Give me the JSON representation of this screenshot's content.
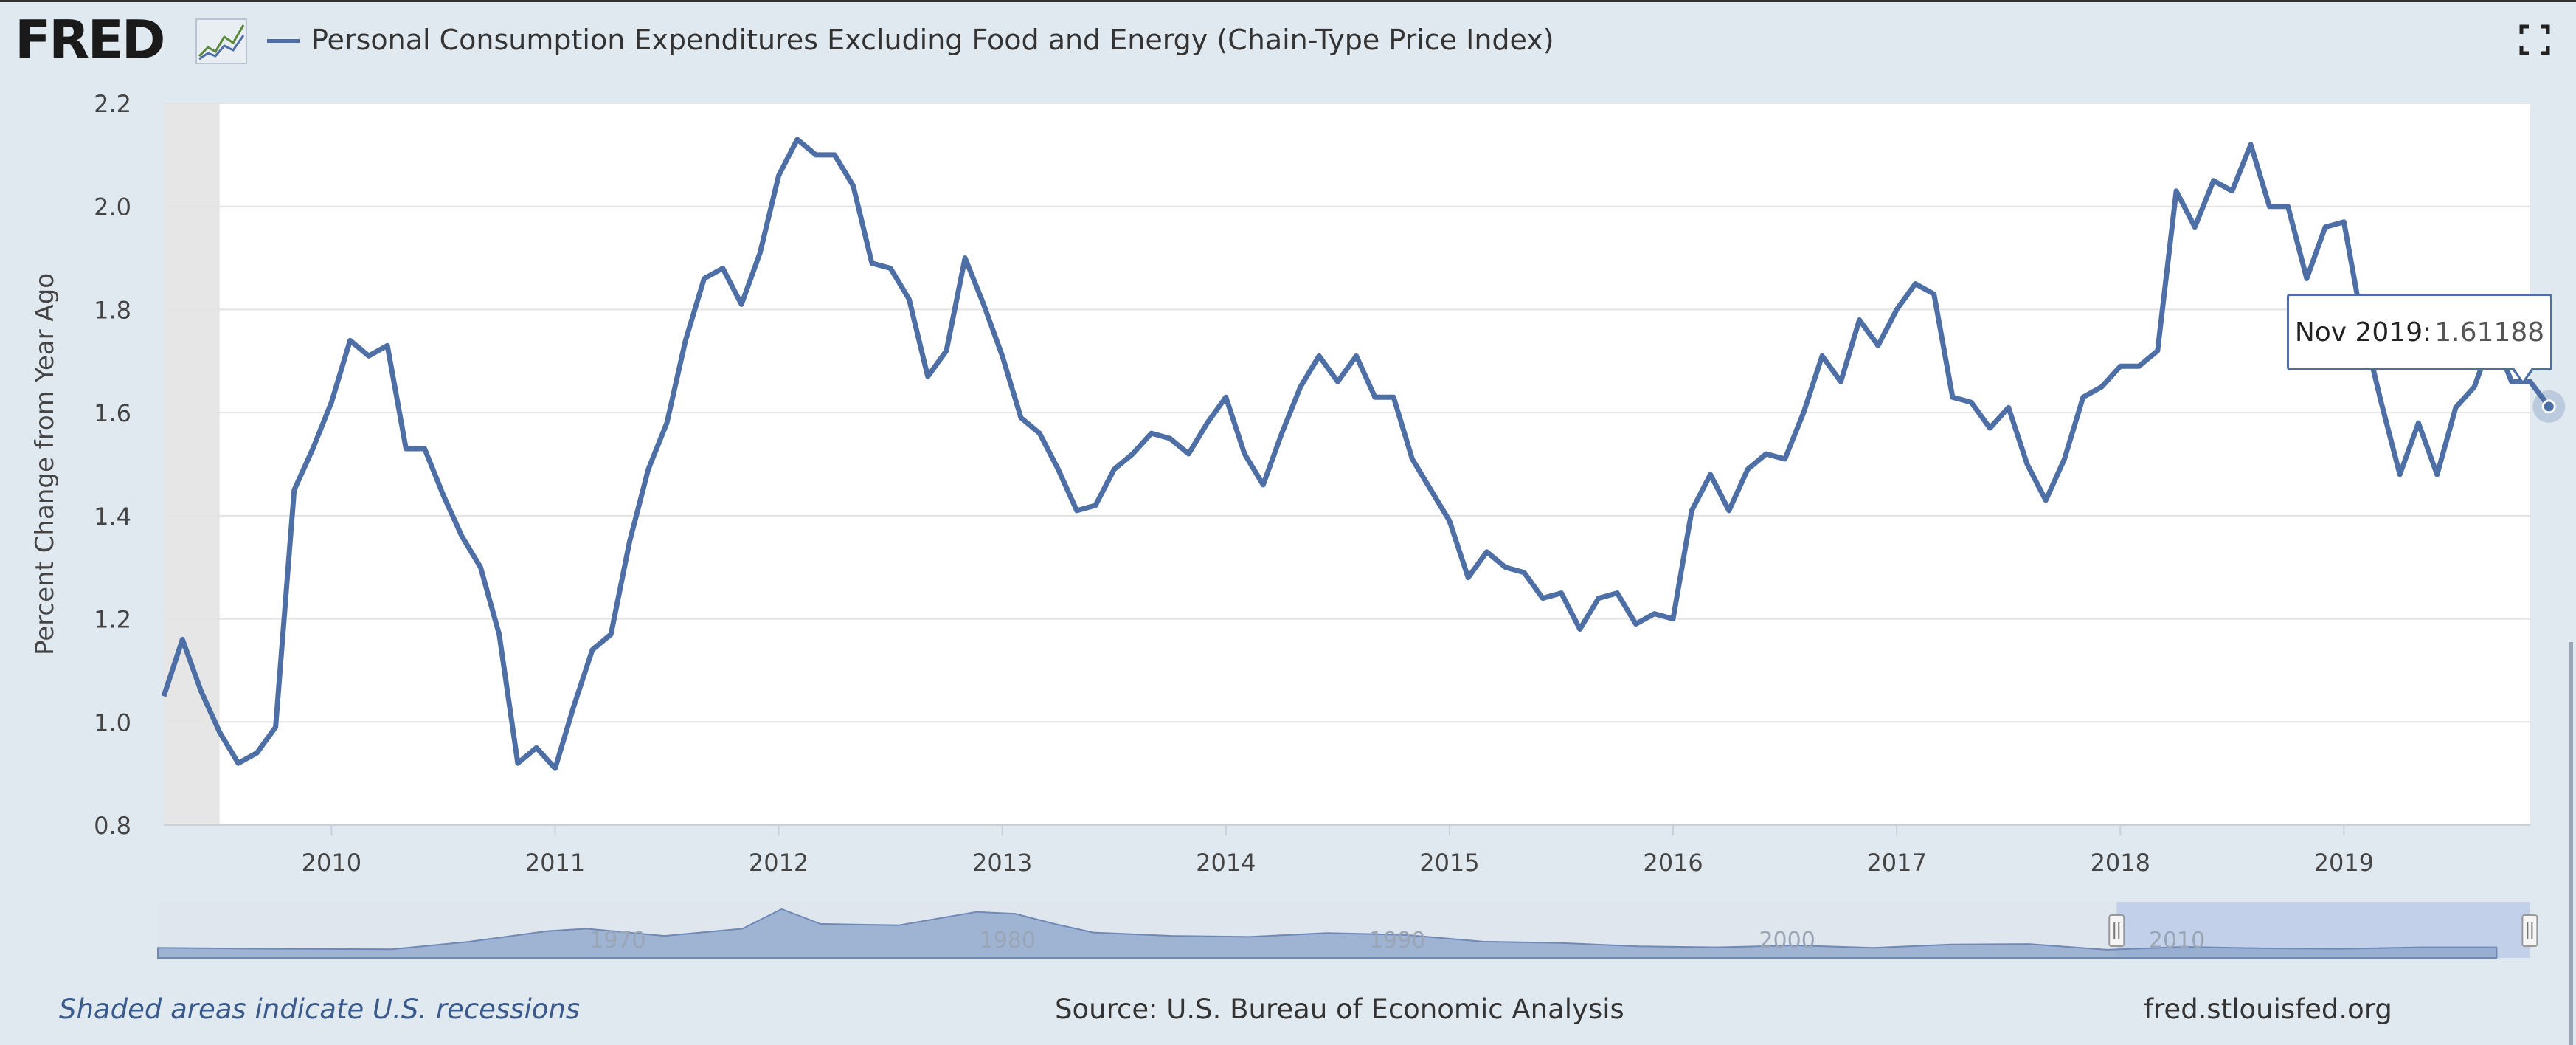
{
  "header": {
    "logo_text": "FRED",
    "logo_icon": "line-chart-icon",
    "title": "Personal Consumption Expenditures Excluding Food and Energy (Chain-Type Price Index)",
    "fullscreen_icon": "fullscreen-icon"
  },
  "colors": {
    "series": "#4e6fa5",
    "background": "#e1e9f0",
    "plot": "#ffffff",
    "recession": "#e6e6e6",
    "navigator_fill": "#8ea6cc",
    "navigator_selected": "#c3d0ea"
  },
  "tooltip": {
    "date": "Nov 2019:",
    "value": "1.61188"
  },
  "footer": {
    "recessions_note": "Shaded areas indicate U.S. recessions",
    "source": "Source: U.S. Bureau of Economic Analysis",
    "site": "fred.stlouisfed.org"
  },
  "navigator": {
    "labels": [
      "1970",
      "1980",
      "1990",
      "2000",
      "2010"
    ],
    "profile_x": [
      1959,
      1962,
      1965,
      1967,
      1969,
      1970,
      1972,
      1974,
      1975,
      1976,
      1978,
      1980,
      1981,
      1982,
      1983,
      1985,
      1987,
      1989,
      1991,
      1993,
      1995,
      1997,
      1999,
      2001,
      2003,
      2005,
      2007,
      2008,
      2009,
      2011,
      2013,
      2015,
      2017,
      2019
    ],
    "profile_y": [
      1.5,
      1.3,
      1.2,
      2.8,
      5.0,
      5.5,
      4.0,
      5.5,
      9.6,
      6.5,
      6.2,
      9.0,
      8.6,
      6.5,
      4.7,
      4.0,
      3.8,
      4.6,
      4.2,
      2.8,
      2.5,
      1.8,
      1.6,
      2.0,
      1.5,
      2.2,
      2.3,
      1.7,
      1.1,
      1.7,
      1.4,
      1.3,
      1.6,
      1.6
    ]
  },
  "chart_data": {
    "type": "line",
    "title": "Personal Consumption Expenditures Excluding Food and Energy (Chain-Type Price Index)",
    "ylabel": "Percent Change from Year Ago",
    "xlabel": "",
    "xlim": [
      "2009-04",
      "2019-11"
    ],
    "ylim": [
      0.8,
      2.2
    ],
    "y_ticks": [
      0.8,
      1.0,
      1.2,
      1.4,
      1.6,
      1.8,
      2.0,
      2.2
    ],
    "y_tick_labels": [
      "0.8",
      "1.0",
      "1.2",
      "1.4",
      "1.6",
      "1.8",
      "2.0",
      "2.2"
    ],
    "x_tick_labels": [
      "2010",
      "2011",
      "2012",
      "2013",
      "2014",
      "2015",
      "2016",
      "2017",
      "2018",
      "2019"
    ],
    "grid": true,
    "recession_shading": [
      [
        "2009-04",
        "2009-06"
      ]
    ],
    "series": [
      {
        "name": "Personal Consumption Expenditures Excluding Food and Energy (Chain-Type Price Index)",
        "start": "2009-04",
        "frequency": "monthly",
        "values": [
          1.05,
          1.16,
          1.06,
          0.98,
          0.92,
          0.94,
          0.99,
          1.45,
          1.53,
          1.62,
          1.74,
          1.71,
          1.73,
          1.53,
          1.53,
          1.44,
          1.36,
          1.3,
          1.17,
          0.92,
          0.95,
          0.91,
          1.03,
          1.14,
          1.17,
          1.35,
          1.49,
          1.58,
          1.74,
          1.86,
          1.88,
          1.81,
          1.91,
          2.06,
          2.13,
          2.1,
          2.1,
          2.04,
          1.89,
          1.88,
          1.82,
          1.67,
          1.72,
          1.9,
          1.81,
          1.71,
          1.59,
          1.56,
          1.49,
          1.41,
          1.42,
          1.49,
          1.52,
          1.56,
          1.55,
          1.52,
          1.58,
          1.63,
          1.52,
          1.46,
          1.56,
          1.65,
          1.71,
          1.66,
          1.71,
          1.63,
          1.63,
          1.51,
          1.45,
          1.39,
          1.28,
          1.33,
          1.3,
          1.29,
          1.24,
          1.25,
          1.18,
          1.24,
          1.25,
          1.19,
          1.21,
          1.2,
          1.41,
          1.48,
          1.41,
          1.49,
          1.52,
          1.51,
          1.6,
          1.71,
          1.66,
          1.78,
          1.73,
          1.8,
          1.85,
          1.83,
          1.63,
          1.62,
          1.57,
          1.61,
          1.5,
          1.43,
          1.51,
          1.63,
          1.65,
          1.69,
          1.69,
          1.72,
          2.03,
          1.96,
          2.05,
          2.03,
          2.12,
          2.0,
          2.0,
          1.86,
          1.96,
          1.97,
          1.77,
          1.62,
          1.48,
          1.58,
          1.48,
          1.61,
          1.65,
          1.75,
          1.66,
          1.66,
          1.61188
        ]
      }
    ],
    "highlight": {
      "date": "Nov 2019",
      "value": 1.61188
    }
  }
}
